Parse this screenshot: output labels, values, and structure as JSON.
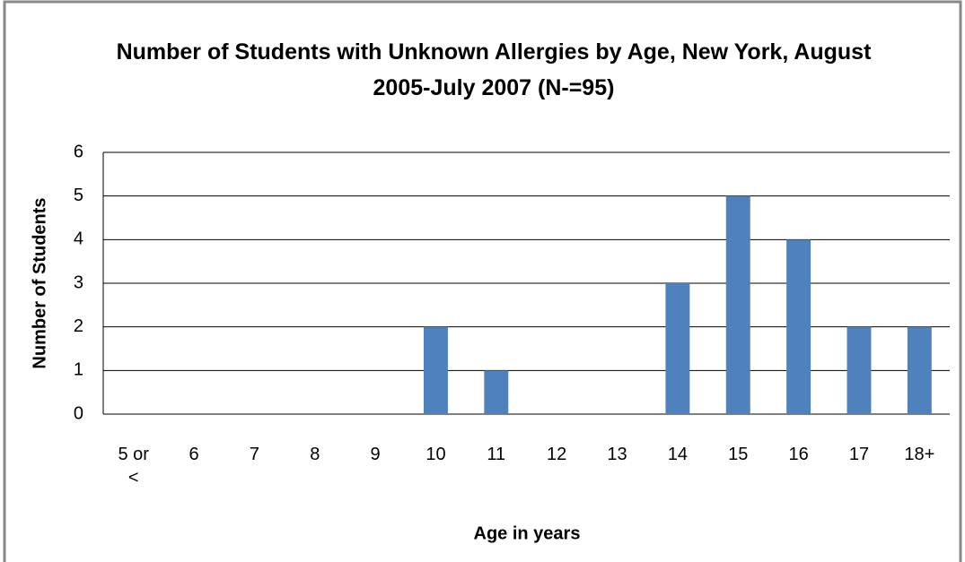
{
  "chart_data": {
    "type": "bar",
    "title": "Number of Students with Unknown Allergies by Age, New York, August 2005-July 2007 (N-=95)",
    "x_label": "Age in years",
    "y_label": "Number of Students",
    "categories": [
      "5 or <",
      "6",
      "7",
      "8",
      "9",
      "10",
      "11",
      "12",
      "13",
      "14",
      "15",
      "16",
      "17",
      "18+"
    ],
    "values": [
      0,
      0,
      0,
      0,
      0,
      2,
      1,
      0,
      0,
      3,
      5,
      4,
      2,
      2
    ],
    "color": "#4f81bd",
    "ylim": [
      0,
      6
    ],
    "yticks": [
      0,
      1,
      2,
      3,
      4,
      5,
      6
    ],
    "grid": true
  }
}
